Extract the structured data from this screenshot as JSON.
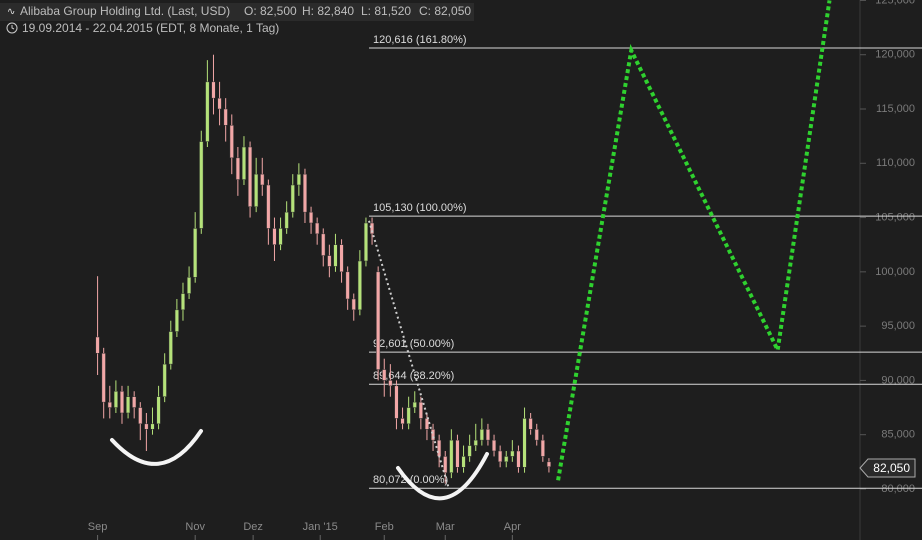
{
  "header": {
    "title": "Alibaba Group Holding Ltd. (Last, USD)",
    "ohlc": [
      "O: 82,500",
      "H: 82,840",
      "L: 81,520",
      "C: 82,050"
    ],
    "range": "19.09.2014 - 22.04.2015 (EDT, 8 Monate, 1 Tag)"
  },
  "chart_data": {
    "type": "candlestick",
    "x": [
      0,
      2,
      4,
      6,
      8,
      10,
      12,
      14,
      16,
      18,
      20,
      22,
      24,
      26,
      28,
      30,
      32,
      34,
      36,
      38,
      40,
      42,
      44,
      46,
      48,
      50,
      52,
      54,
      56,
      58,
      60,
      62,
      64,
      66,
      68,
      70,
      72,
      74,
      76,
      78,
      80,
      82,
      84,
      86,
      88,
      90,
      92,
      94,
      96,
      98,
      100,
      102,
      104,
      106,
      108,
      110,
      112,
      114,
      116,
      118,
      120,
      122,
      124,
      126,
      128,
      130,
      132,
      134,
      136,
      138,
      140,
      142,
      144,
      146,
      148
    ],
    "open": [
      94000,
      92500,
      88000,
      87500,
      89000,
      87000,
      88500,
      87500,
      86000,
      85500,
      86000,
      88500,
      91500,
      94500,
      96500,
      98000,
      99500,
      104000,
      112000,
      117500,
      116000,
      115000,
      113500,
      110500,
      108500,
      111500,
      106000,
      109000,
      108000,
      104000,
      102500,
      104000,
      105500,
      108000,
      109000,
      105500,
      104500,
      103500,
      101500,
      100500,
      102500,
      100000,
      97500,
      96500,
      101000,
      104500,
      100000,
      91000,
      90000,
      89500,
      86500,
      86000,
      87500,
      88000,
      86500,
      85500,
      84500,
      83000,
      81500,
      84500,
      82000,
      83000,
      84000,
      84500,
      85500,
      84500,
      83500,
      82500,
      83000,
      83500,
      82000,
      86500,
      85500,
      84500,
      82500
    ],
    "high": [
      99600,
      93000,
      89500,
      90000,
      89500,
      89500,
      89000,
      88000,
      87000,
      87500,
      89500,
      92500,
      95500,
      97500,
      99000,
      100500,
      105500,
      113000,
      119500,
      120000,
      117500,
      116000,
      114500,
      111500,
      112500,
      112000,
      110500,
      110500,
      108500,
      105000,
      105000,
      106500,
      109000,
      110000,
      109500,
      106000,
      105000,
      104000,
      102500,
      103500,
      103000,
      100500,
      98000,
      102000,
      105000,
      105000,
      100500,
      92000,
      91500,
      90000,
      87500,
      88500,
      89000,
      88500,
      87000,
      86000,
      85000,
      83500,
      85500,
      85000,
      84000,
      85000,
      86000,
      86500,
      86000,
      85000,
      84000,
      83500,
      84500,
      84000,
      87500,
      87000,
      86000,
      85000,
      82840
    ],
    "low": [
      90500,
      86500,
      86500,
      87000,
      86000,
      86500,
      86500,
      84500,
      83500,
      85000,
      85500,
      88000,
      91000,
      94000,
      95500,
      97500,
      99000,
      103500,
      111500,
      114500,
      113500,
      112000,
      109000,
      107000,
      108000,
      105000,
      105500,
      107000,
      102500,
      101000,
      102000,
      103500,
      105000,
      107000,
      104500,
      103500,
      102500,
      100500,
      99500,
      100000,
      99000,
      96500,
      95500,
      96000,
      100500,
      102500,
      90000,
      88500,
      88500,
      85500,
      85500,
      85500,
      87000,
      85500,
      84500,
      83500,
      82000,
      80500,
      81000,
      81500,
      81500,
      82500,
      83500,
      84000,
      84000,
      83000,
      82000,
      82000,
      82500,
      81500,
      81500,
      85000,
      84000,
      82500,
      81520
    ],
    "close": [
      92500,
      88000,
      87500,
      89000,
      87000,
      88500,
      87500,
      86000,
      85500,
      86000,
      88500,
      91500,
      94500,
      96500,
      98000,
      99500,
      104000,
      112000,
      117500,
      116000,
      115000,
      113500,
      110500,
      108500,
      111500,
      106000,
      109000,
      108000,
      104000,
      102500,
      104000,
      105500,
      108000,
      109000,
      105500,
      104500,
      103500,
      101500,
      100500,
      102500,
      100000,
      97500,
      96500,
      101000,
      104500,
      103500,
      91000,
      90000,
      89500,
      86500,
      86000,
      87500,
      88000,
      86500,
      85500,
      84500,
      83000,
      81500,
      84500,
      82000,
      83000,
      84000,
      84500,
      85500,
      84500,
      83500,
      82500,
      83000,
      83500,
      82000,
      86500,
      85500,
      84500,
      83000,
      82050
    ],
    "up_color": "#b5e27a",
    "down_color": "#f2a7a7",
    "xlim": [
      -32,
      250
    ],
    "ylim": [
      75300,
      125040
    ],
    "xticks": [
      {
        "value": 0,
        "label": "Sep"
      },
      {
        "value": 32,
        "label": "Nov"
      },
      {
        "value": 51,
        "label": "Dez"
      },
      {
        "value": 73,
        "label": "Jan '15"
      },
      {
        "value": 94,
        "label": "Feb"
      },
      {
        "value": 114,
        "label": "Mar"
      },
      {
        "value": 136,
        "label": "Apr"
      }
    ],
    "yticks": [
      {
        "value": 80000,
        "label": "80,000"
      },
      {
        "value": 85000,
        "label": "85,000"
      },
      {
        "value": 90000,
        "label": "90,000"
      },
      {
        "value": 95000,
        "label": "95,000"
      },
      {
        "value": 100000,
        "label": "100,000"
      },
      {
        "value": 105000,
        "label": "105,000"
      },
      {
        "value": 110000,
        "label": "110,000"
      },
      {
        "value": 115000,
        "label": "115,000"
      },
      {
        "value": 120000,
        "label": "120,000"
      },
      {
        "value": 125000,
        "label": "125,000"
      }
    ],
    "fib_levels": [
      {
        "value": 120616,
        "label": "120,616 (161.80%)"
      },
      {
        "value": 105130,
        "label": "105,130 (100.00%)"
      },
      {
        "value": 92601,
        "label": "92,601 (50.00%)"
      },
      {
        "value": 89644,
        "label": "89,644 (38.20%)"
      },
      {
        "value": 80072,
        "label": "80,072 (0.00%)"
      }
    ],
    "trend_line": {
      "x": [
        89,
        115
      ],
      "values": [
        104700,
        80200
      ],
      "color": "#cfcfcf"
    },
    "projection": {
      "x": [
        151,
        175,
        223,
        240
      ],
      "values": [
        80800,
        120400,
        92800,
        125000
      ],
      "color": "#2fd12f"
    },
    "last_label": "82,050"
  }
}
